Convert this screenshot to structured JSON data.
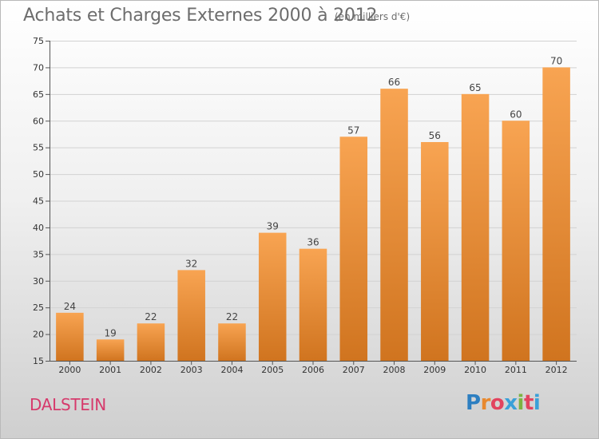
{
  "page": {
    "title": "Achats et Charges Externes 2000 à 2012",
    "subtitle": "(en milliers d'€)",
    "commune": "DALSTEIN",
    "logo": "Proxiti"
  },
  "logo_letter_colors": [
    "#2d7fc1",
    "#e8892f",
    "#e2435f",
    "#3aa0d8",
    "#7cb342",
    "#e2435f",
    "#3aa0d8"
  ],
  "bar_colors": {
    "top": "#f8a452",
    "bottom": "#d0741f"
  },
  "chart_data": {
    "type": "bar",
    "title": "Achats et Charges Externes 2000 à 2012",
    "subtitle": "(en milliers d'€)",
    "xlabel": "",
    "ylabel": "",
    "categories": [
      "2000",
      "2001",
      "2002",
      "2003",
      "2004",
      "2005",
      "2006",
      "2007",
      "2008",
      "2009",
      "2010",
      "2011",
      "2012"
    ],
    "values": [
      24,
      19,
      22,
      32,
      22,
      39,
      36,
      57,
      66,
      56,
      65,
      60,
      70
    ],
    "ylim": [
      15,
      75
    ],
    "yticks": [
      15,
      20,
      25,
      30,
      35,
      40,
      45,
      50,
      55,
      60,
      65,
      70,
      75
    ],
    "grid": true,
    "legend": "none"
  }
}
